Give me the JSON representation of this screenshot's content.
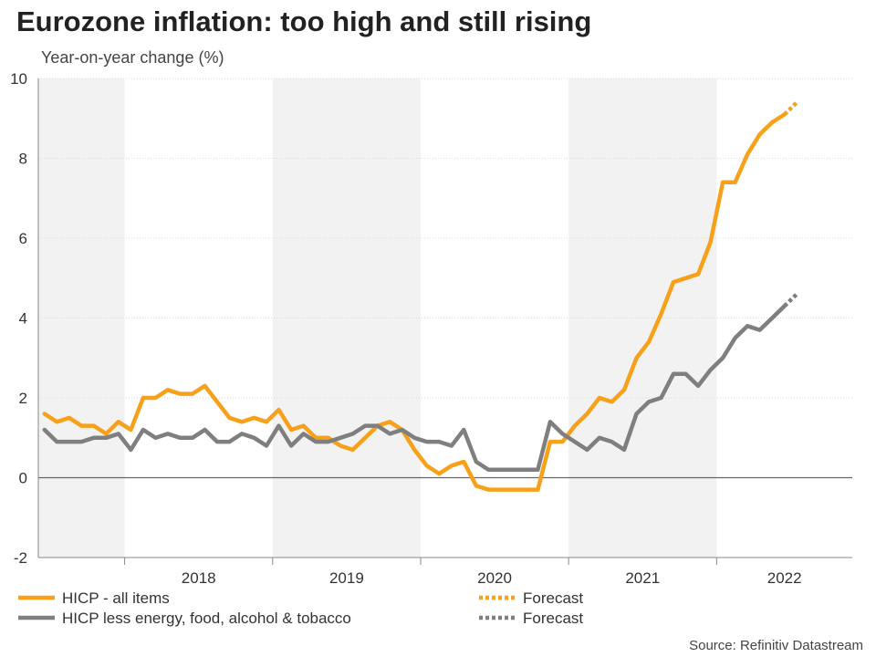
{
  "title": "Eurozone inflation: too high and still rising",
  "subtitle": "Year-on-year change (%)",
  "source": "Source: Refinitiv Datastream",
  "colors": {
    "hicp": "#F7A11A",
    "core": "#7F7F7F",
    "shade": "#F2F2F2",
    "grid": "#D9D9D9",
    "axis": "#888888"
  },
  "chart_data": {
    "type": "line",
    "title": "Eurozone inflation: too high and still rising",
    "ylabel": "Year-on-year change (%)",
    "xlabel": "",
    "ylim": [
      -2,
      10
    ],
    "yticks": [
      -2,
      0,
      2,
      4,
      6,
      8,
      10
    ],
    "x_start": "2017-06",
    "year_labels": [
      "2018",
      "2019",
      "2020",
      "2021",
      "2022"
    ],
    "shaded_years": [
      "2017",
      "2019",
      "2021"
    ],
    "series": [
      {
        "name": "HICP - all items",
        "color": "#F7A11A",
        "style": "solid",
        "values": [
          1.6,
          1.4,
          1.5,
          1.3,
          1.3,
          1.1,
          1.4,
          1.2,
          2.0,
          2.0,
          2.2,
          2.1,
          2.1,
          2.3,
          1.9,
          1.5,
          1.4,
          1.5,
          1.4,
          1.7,
          1.2,
          1.3,
          1.0,
          1.0,
          0.8,
          0.7,
          1.0,
          1.3,
          1.4,
          1.2,
          0.7,
          0.3,
          0.1,
          0.3,
          0.4,
          -0.2,
          -0.3,
          -0.3,
          -0.3,
          -0.3,
          -0.3,
          0.9,
          0.9,
          1.3,
          1.6,
          2.0,
          1.9,
          2.2,
          3.0,
          3.4,
          4.1,
          4.9,
          5.0,
          5.1,
          5.9,
          7.4,
          7.4,
          8.1,
          8.6,
          8.9,
          9.1
        ]
      },
      {
        "name": "Forecast",
        "color": "#F7A11A",
        "style": "dotted",
        "start_index": 60,
        "values": [
          9.1,
          9.4
        ]
      },
      {
        "name": "HICP less energy, food, alcohol & tobacco",
        "color": "#7F7F7F",
        "style": "solid",
        "values": [
          1.2,
          0.9,
          0.9,
          0.9,
          1.0,
          1.0,
          1.1,
          0.7,
          1.2,
          1.0,
          1.1,
          1.0,
          1.0,
          1.2,
          0.9,
          0.9,
          1.1,
          1.0,
          0.8,
          1.3,
          0.8,
          1.1,
          0.9,
          0.9,
          1.0,
          1.1,
          1.3,
          1.3,
          1.1,
          1.2,
          1.0,
          0.9,
          0.9,
          0.8,
          1.2,
          0.4,
          0.2,
          0.2,
          0.2,
          0.2,
          0.2,
          1.4,
          1.1,
          0.9,
          0.7,
          1.0,
          0.9,
          0.7,
          1.6,
          1.9,
          2.0,
          2.6,
          2.6,
          2.3,
          2.7,
          3.0,
          3.5,
          3.8,
          3.7,
          4.0,
          4.3
        ]
      },
      {
        "name": "Forecast",
        "color": "#7F7F7F",
        "style": "dotted",
        "start_index": 60,
        "values": [
          4.3,
          4.6
        ]
      }
    ],
    "legend": [
      {
        "label": "HICP - all items",
        "color": "#F7A11A",
        "style": "solid"
      },
      {
        "label": "Forecast",
        "color": "#F7A11A",
        "style": "dotted"
      },
      {
        "label": "HICP less energy, food, alcohol & tobacco",
        "color": "#7F7F7F",
        "style": "solid"
      },
      {
        "label": "Forecast",
        "color": "#7F7F7F",
        "style": "dotted"
      }
    ],
    "legend_position": "bottom"
  }
}
